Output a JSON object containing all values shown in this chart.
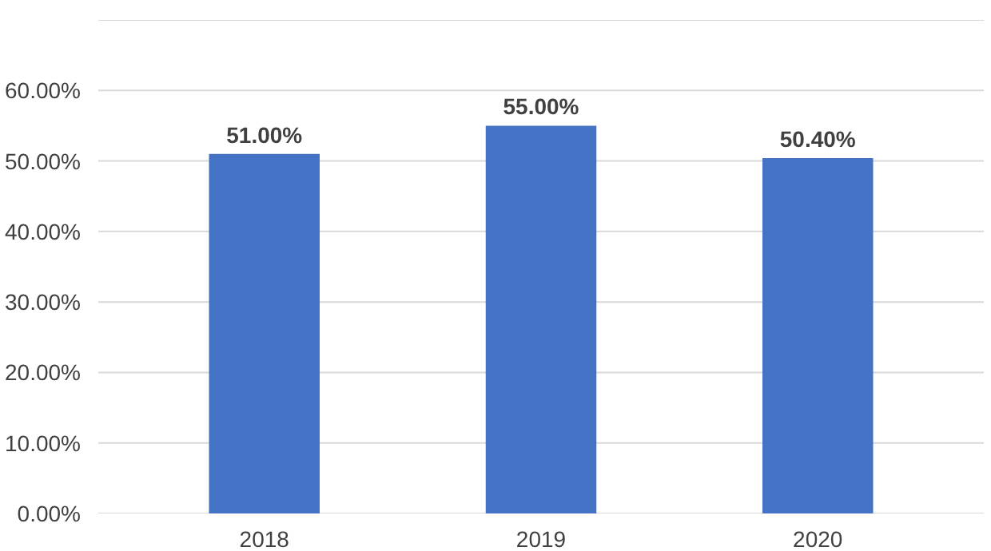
{
  "chart_data": {
    "type": "bar",
    "categories": [
      "2018",
      "2019",
      "2020"
    ],
    "values": [
      51.0,
      55.0,
      50.4
    ],
    "value_labels": [
      "51.00%",
      "55.00%",
      "50.40%"
    ],
    "color": "#4472c4",
    "ylim": [
      0,
      70
    ],
    "yticks": [
      {
        "value": 0,
        "label": "0.00%"
      },
      {
        "value": 10,
        "label": "10.00%"
      },
      {
        "value": 20,
        "label": "20.00%"
      },
      {
        "value": 30,
        "label": "30.00%"
      },
      {
        "value": 40,
        "label": "40.00%"
      },
      {
        "value": 50,
        "label": "50.00%"
      },
      {
        "value": 60,
        "label": "60.00%"
      },
      {
        "value": 70,
        "label": null
      }
    ],
    "grid": "y"
  }
}
